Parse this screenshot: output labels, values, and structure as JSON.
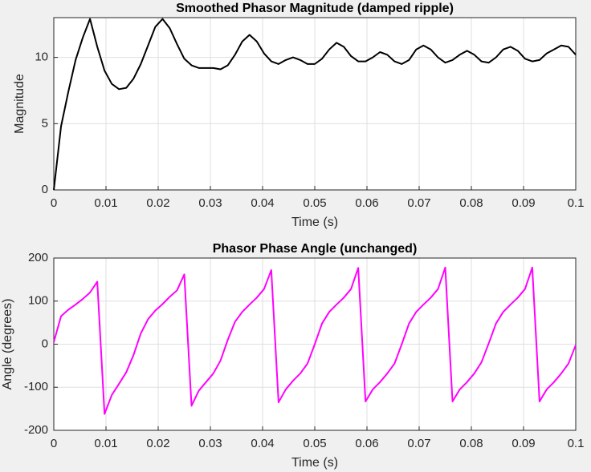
{
  "chart_data": [
    {
      "type": "line",
      "title": "Smoothed Phasor Magnitude (damped ripple)",
      "xlabel": "Time (s)",
      "ylabel": "Magnitude",
      "x": [
        0,
        0.00139,
        0.00278,
        0.00417,
        0.00556,
        0.00694,
        0.00833,
        0.00972,
        0.01111,
        0.0125,
        0.01389,
        0.01528,
        0.01667,
        0.01806,
        0.01944,
        0.02083,
        0.02222,
        0.02361,
        0.025,
        0.02639,
        0.02778,
        0.02917,
        0.03056,
        0.03194,
        0.03333,
        0.03472,
        0.03611,
        0.0375,
        0.03889,
        0.04028,
        0.04167,
        0.04306,
        0.04444,
        0.04583,
        0.04722,
        0.04861,
        0.05,
        0.05139,
        0.05278,
        0.05417,
        0.05556,
        0.05694,
        0.05833,
        0.05972,
        0.06111,
        0.0625,
        0.06389,
        0.06528,
        0.06667,
        0.06806,
        0.06944,
        0.07083,
        0.07222,
        0.07361,
        0.075,
        0.07639,
        0.07778,
        0.07917,
        0.08056,
        0.08194,
        0.08333,
        0.08472,
        0.08611,
        0.0875,
        0.08889,
        0.09028,
        0.09167,
        0.09306,
        0.09444,
        0.09583,
        0.09722,
        0.09861,
        0.1
      ],
      "values": [
        0,
        4.8,
        7.4,
        9.8,
        11.5,
        12.9,
        10.8,
        9.0,
        8.0,
        7.6,
        7.7,
        8.4,
        9.5,
        10.9,
        12.3,
        12.9,
        12.2,
        11.0,
        9.9,
        9.4,
        9.2,
        9.2,
        9.2,
        9.1,
        9.4,
        10.2,
        11.2,
        11.7,
        11.2,
        10.3,
        9.7,
        9.5,
        9.8,
        10.0,
        9.8,
        9.5,
        9.5,
        9.9,
        10.6,
        11.1,
        10.8,
        10.1,
        9.7,
        9.7,
        10.0,
        10.4,
        10.2,
        9.7,
        9.5,
        9.8,
        10.6,
        10.9,
        10.6,
        10.0,
        9.6,
        9.8,
        10.2,
        10.5,
        10.2,
        9.7,
        9.6,
        10.0,
        10.6,
        10.8,
        10.5,
        9.9,
        9.7,
        9.8,
        10.3,
        10.6,
        10.9,
        10.8,
        10.2
      ],
      "color": "#000000",
      "xlim": [
        0,
        0.1
      ],
      "ylim": [
        0,
        13
      ],
      "xticks": [
        0,
        0.01,
        0.02,
        0.03,
        0.04,
        0.05,
        0.06,
        0.07,
        0.08,
        0.09,
        0.1
      ],
      "yticks": [
        0,
        5,
        10
      ],
      "grid": true
    },
    {
      "type": "line",
      "title": "Phasor Phase Angle (unchanged)",
      "xlabel": "Time (s)",
      "ylabel": "Angle (degrees)",
      "x": [
        0,
        0.00139,
        0.00278,
        0.00417,
        0.00556,
        0.00694,
        0.00833,
        0.00972,
        0.01111,
        0.0125,
        0.01389,
        0.01528,
        0.01667,
        0.01806,
        0.01944,
        0.02083,
        0.02222,
        0.02361,
        0.025,
        0.02639,
        0.02778,
        0.02917,
        0.03056,
        0.03194,
        0.03333,
        0.03472,
        0.03611,
        0.0375,
        0.03889,
        0.04028,
        0.04167,
        0.04306,
        0.04444,
        0.04583,
        0.04722,
        0.04861,
        0.05,
        0.05139,
        0.05278,
        0.05417,
        0.05556,
        0.05694,
        0.05833,
        0.05972,
        0.06111,
        0.0625,
        0.06389,
        0.06528,
        0.06667,
        0.06806,
        0.06944,
        0.07083,
        0.07222,
        0.07361,
        0.075,
        0.07639,
        0.07778,
        0.07917,
        0.08056,
        0.08194,
        0.08333,
        0.08472,
        0.08611,
        0.0875,
        0.08889,
        0.09028,
        0.09167,
        0.09306,
        0.09444,
        0.09583,
        0.09722,
        0.09861,
        0.1
      ],
      "values": [
        5,
        65,
        80,
        92,
        105,
        120,
        145,
        -162,
        -118,
        -92,
        -65,
        -25,
        25,
        58,
        78,
        93,
        110,
        125,
        162,
        -143,
        -108,
        -88,
        -68,
        -38,
        10,
        52,
        75,
        92,
        108,
        128,
        172,
        -135,
        -105,
        -85,
        -68,
        -45,
        0,
        48,
        75,
        92,
        108,
        128,
        177,
        -133,
        -105,
        -88,
        -68,
        -45,
        0,
        48,
        75,
        92,
        108,
        128,
        178,
        -133,
        -105,
        -88,
        -68,
        -42,
        2,
        48,
        75,
        92,
        108,
        128,
        178,
        -133,
        -105,
        -88,
        -68,
        -45,
        -2
      ],
      "color": "#ff00ff",
      "xlim": [
        0,
        0.1
      ],
      "ylim": [
        -200,
        200
      ],
      "xticks": [
        0,
        0.01,
        0.02,
        0.03,
        0.04,
        0.05,
        0.06,
        0.07,
        0.08,
        0.09,
        0.1
      ],
      "yticks": [
        -200,
        -100,
        0,
        100,
        200
      ],
      "grid": true
    }
  ]
}
